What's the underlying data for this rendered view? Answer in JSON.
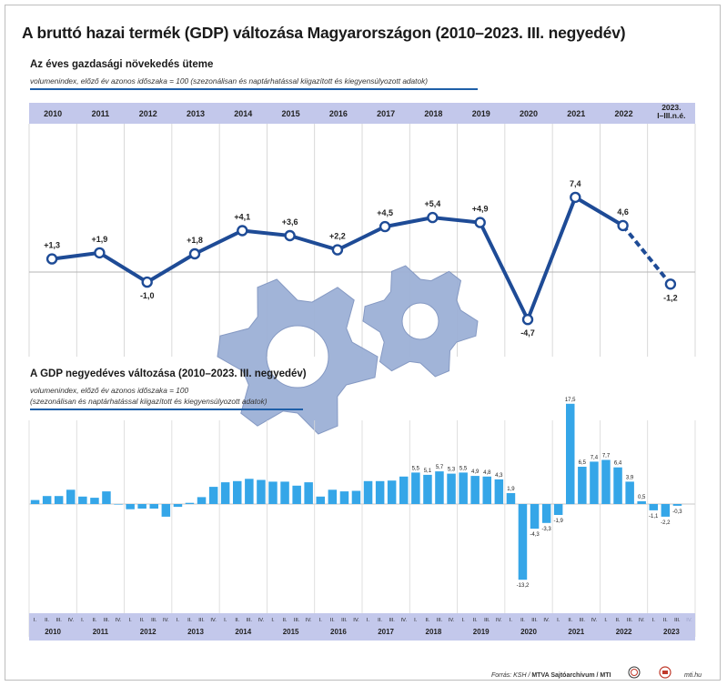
{
  "title": "A bruttó hazai termék (GDP) változása Magyarországon (2010–2023. III. negyedév)",
  "annual": {
    "subtitle": "Az éves gazdasági növekedés üteme",
    "note": "volumenindex, előző év azonos időszaka = 100 (szezonálisan és naptárhatással kiigazított és kiegyensúlyozott adatok)"
  },
  "quarterly": {
    "subtitle": "A GDP negyedéves változása (2010–2023. III. negyedév)",
    "note_line1": "volumenindex, előző év azonos időszaka = 100",
    "note_line2": "(szezonálisan és naptárhatással kiigazított és kiegyensúlyozott adatok)"
  },
  "footer": {
    "source_prefix": "Forrás: KSH / ",
    "source_bold": "MTVA Sajtóarchívum / MTI",
    "url": "mti.hu",
    "logo1": "MTVA",
    "logo2": "MTI"
  },
  "colors": {
    "dark_line": "#1e4b96",
    "bar": "#35a6e8",
    "header_band": "#c3c8eb",
    "gear": "#9db1d6"
  },
  "chart_data": [
    {
      "type": "line",
      "categories": [
        "2010",
        "2011",
        "2012",
        "2013",
        "2014",
        "2015",
        "2016",
        "2017",
        "2018",
        "2019",
        "2020",
        "2021",
        "2022",
        "2023. I–III.n.é."
      ],
      "values": [
        1.3,
        1.9,
        -1.0,
        1.8,
        4.1,
        3.6,
        2.2,
        4.5,
        5.4,
        4.9,
        -4.7,
        7.4,
        4.6,
        -1.2
      ],
      "labels": [
        "+1,3",
        "+1,9",
        "-1,0",
        "+1,8",
        "+4,1",
        "+3,6",
        "+2,2",
        "+4,5",
        "+5,4",
        "+4,9",
        "-4,7",
        "7,4",
        "4,6",
        "-1,2"
      ],
      "dashed_last_segment": true
    },
    {
      "type": "bar",
      "years": [
        "2010",
        "2011",
        "2012",
        "2013",
        "2014",
        "2015",
        "2016",
        "2017",
        "2018",
        "2019",
        "2020",
        "2021",
        "2022",
        "2023"
      ],
      "quarter_labels": [
        "I.",
        "II.",
        "III.",
        "IV."
      ],
      "values": [
        0.7,
        1.4,
        1.4,
        2.5,
        1.3,
        1.1,
        2.2,
        0.0,
        -0.9,
        -0.8,
        -0.8,
        -2.2,
        -0.5,
        0.2,
        1.2,
        3.0,
        3.8,
        4.0,
        4.4,
        4.2,
        3.9,
        3.9,
        3.2,
        3.8,
        1.3,
        2.5,
        2.2,
        2.3,
        4.0,
        4.0,
        4.1,
        4.8,
        5.5,
        5.1,
        5.7,
        5.3,
        5.5,
        4.9,
        4.8,
        4.3,
        1.9,
        -13.2,
        -4.3,
        -3.3,
        -1.9,
        17.5,
        6.5,
        7.4,
        7.7,
        6.4,
        3.9,
        0.5,
        -1.1,
        -2.2,
        -0.3
      ],
      "labels": [
        "",
        "",
        "",
        "",
        "",
        "",
        "",
        "",
        "",
        "",
        "",
        "",
        "",
        "",
        "",
        "",
        "",
        "",
        "",
        "",
        "",
        "",
        "",
        "",
        "",
        "",
        "",
        "",
        "",
        "",
        "",
        "",
        "5,5",
        "5,1",
        "5,7",
        "5,3",
        "5,5",
        "4,9",
        "4,8",
        "4,3",
        "1,9",
        "-13,2",
        "-4,3",
        "-3,3",
        "-1,9",
        "17,5",
        "6,5",
        "7,4",
        "7,7",
        "6,4",
        "3,9",
        "0,5",
        "-1,1",
        "-2,2",
        "-0,3"
      ]
    }
  ]
}
